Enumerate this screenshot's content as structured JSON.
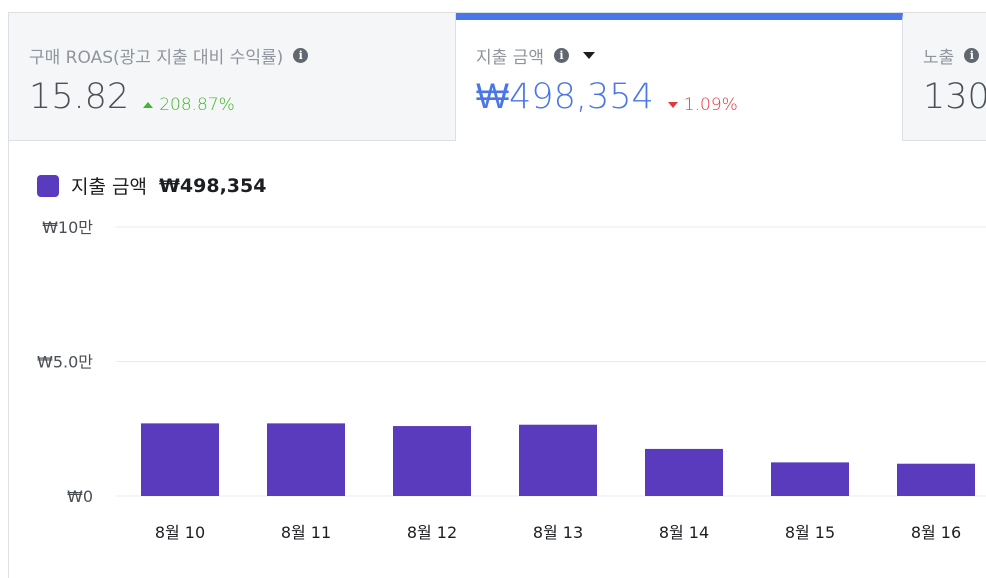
{
  "tabs": [
    {
      "label": "구매 ROAS(광고 지출 대비 수익률)",
      "value": "15.82",
      "delta": "208.87%",
      "direction": "up",
      "active": false
    },
    {
      "label": "지출 금액",
      "value": "₩498,354",
      "delta": "1.09%",
      "direction": "down",
      "active": true
    },
    {
      "label": "노출",
      "value": "130",
      "delta": "",
      "direction": "",
      "active": false
    }
  ],
  "legend": {
    "label": "지출 금액",
    "value": "₩498,354"
  },
  "colors": {
    "accent": "#4a76e8",
    "bar": "#5a3bbd",
    "up": "#42b72a",
    "down": "#e0393e"
  },
  "chart_data": {
    "type": "bar",
    "categories": [
      "8월 10",
      "8월 11",
      "8월 12",
      "8월 13",
      "8월 14",
      "8월 15",
      "8월 16"
    ],
    "values": [
      27000,
      27000,
      26000,
      26500,
      17500,
      12500,
      12000
    ],
    "ylim": [
      0,
      100000
    ],
    "yticks": [
      {
        "value": 0,
        "label": "₩0"
      },
      {
        "value": 50000,
        "label": "₩5.0만"
      },
      {
        "value": 100000,
        "label": "₩10만"
      }
    ],
    "grid": true
  }
}
